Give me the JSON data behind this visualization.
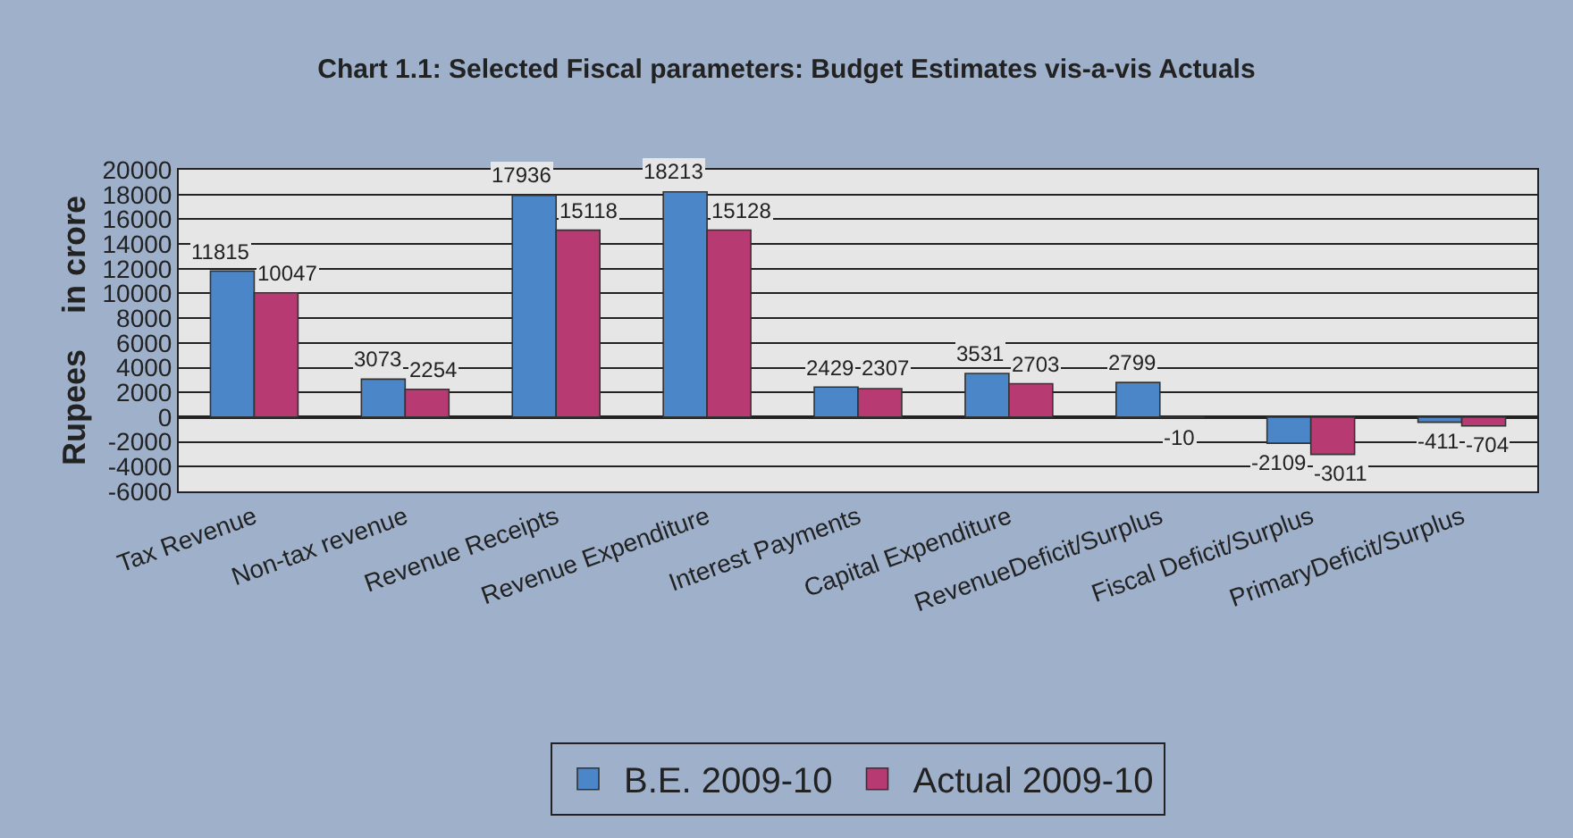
{
  "chart_data": {
    "type": "bar",
    "title": "Chart 1.1: Selected Fiscal parameters: Budget Estimates vis-a-vis Actuals",
    "ylabel": "Rupees    in crore",
    "categories": [
      "Tax Revenue",
      "Non-tax revenue",
      "Revenue Receipts",
      "Revenue Expenditure",
      "Interest Payments",
      "Capital Expenditure",
      "RevenueDeficit/Surplus",
      "Fiscal Deficit/Surplus",
      "PrimaryDeficit/Surplus"
    ],
    "series": [
      {
        "name": "B.E. 2009-10",
        "color": "#4a86c8",
        "values": [
          11815,
          3073,
          17936,
          18213,
          2429,
          3531,
          2799,
          -2109,
          -411
        ]
      },
      {
        "name": "Actual 2009-10",
        "color": "#b83a72",
        "values": [
          10047,
          2254,
          15118,
          15128,
          2307,
          2703,
          -10,
          -3011,
          -704
        ]
      }
    ],
    "ylim": [
      -6000,
      20000
    ],
    "yticks": [
      -6000,
      -4000,
      -2000,
      0,
      2000,
      4000,
      6000,
      8000,
      10000,
      12000,
      14000,
      16000,
      18000,
      20000
    ],
    "grid": "y",
    "legend": "bottom",
    "data_labels": true
  }
}
